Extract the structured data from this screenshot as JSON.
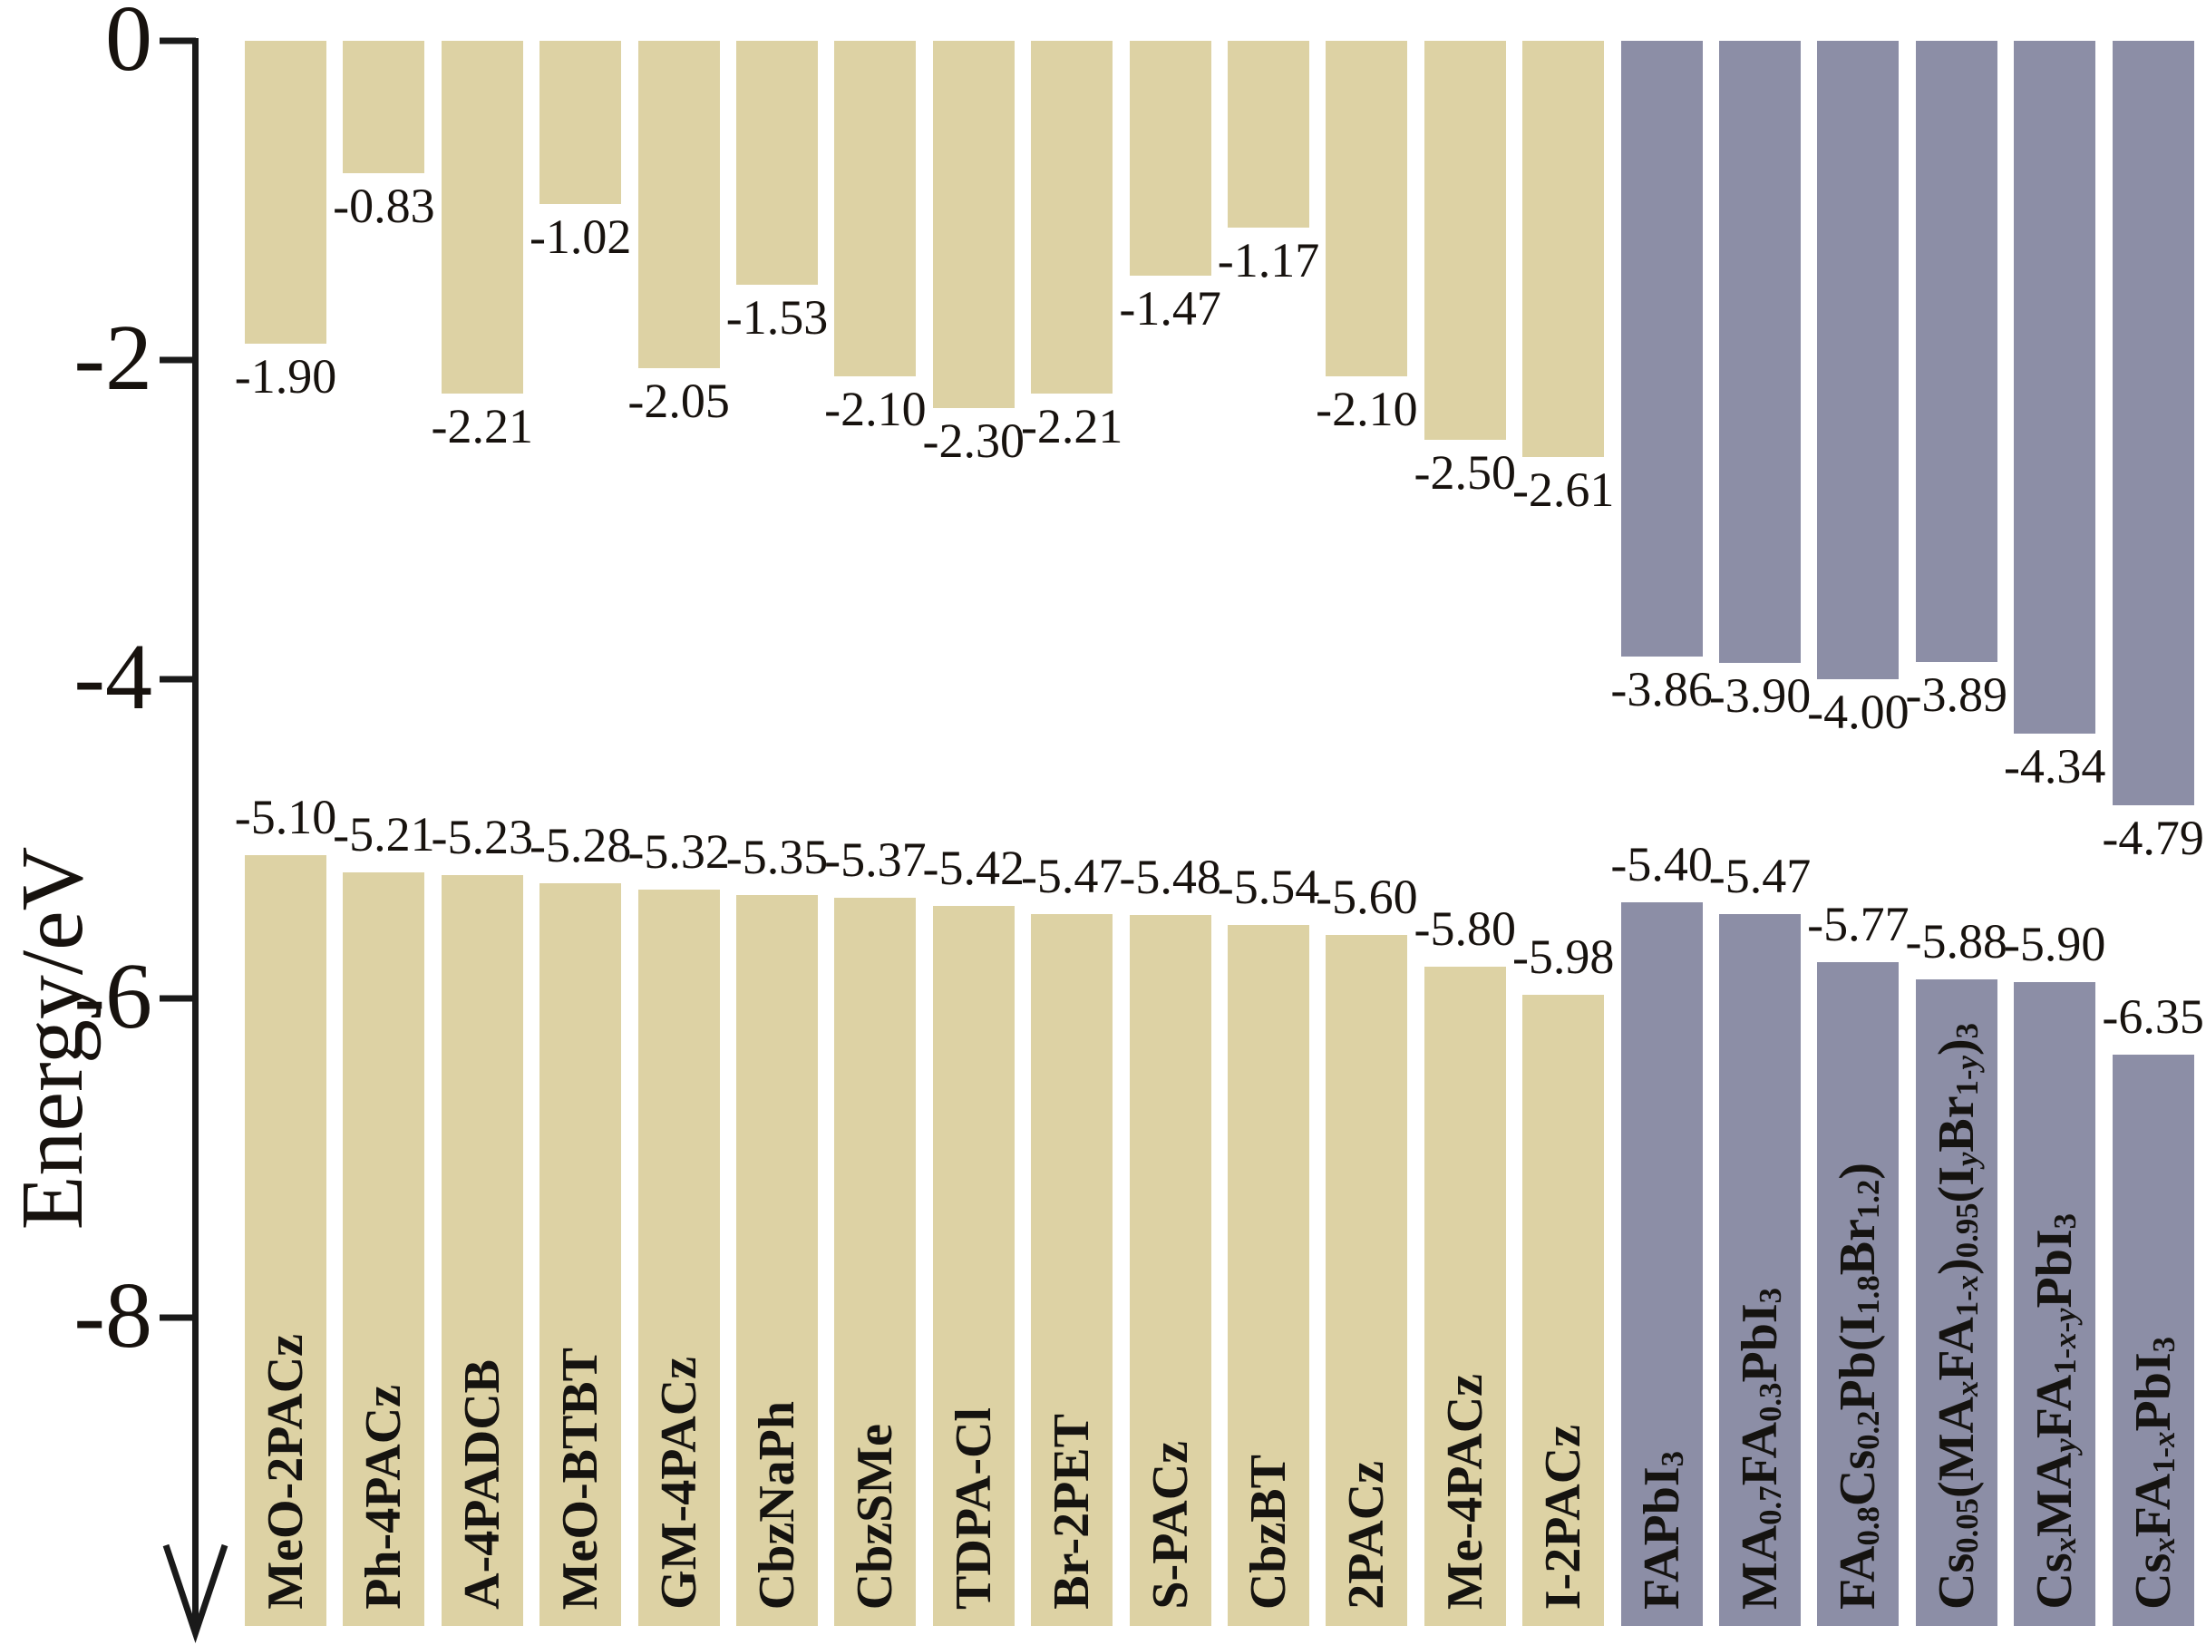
{
  "colors": {
    "figure_background": "#ffffff",
    "axis": "#1a1a1a",
    "label_text": "#17120e",
    "htm_bar": "#ddd2a4",
    "perovskite_bar": "#8c8ea6"
  },
  "chart_data": {
    "type": "bar",
    "subtype": "paired-energy-levels",
    "title": "",
    "xlabel": "",
    "ylabel": "Energy/eV",
    "ylim": [
      -9.9,
      0
    ],
    "grid": false,
    "legend_position": "none",
    "value_label_decimals": 2,
    "yticks": [
      {
        "label": "0",
        "value": 0
      },
      {
        "label": "-2",
        "value": -2
      },
      {
        "label": "-4",
        "value": -4
      },
      {
        "label": "-6",
        "value": -6
      },
      {
        "label": "-8",
        "value": -8
      }
    ],
    "groups": {
      "htm": {
        "color": "#ddd2a4"
      },
      "perovskite": {
        "color": "#8c8ea6"
      }
    },
    "bars": [
      {
        "label": "MeO-2PACz",
        "group": "htm",
        "upper_level": -1.9,
        "lower_level": -5.1
      },
      {
        "label": "Ph-4PACz",
        "group": "htm",
        "upper_level": -0.83,
        "lower_level": -5.21
      },
      {
        "label": "A-4PADCB",
        "group": "htm",
        "upper_level": -2.21,
        "lower_level": -5.23
      },
      {
        "label": "MeO-BTBT",
        "group": "htm",
        "upper_level": -1.02,
        "lower_level": -5.28
      },
      {
        "label": "GM-4PACz",
        "group": "htm",
        "upper_level": -2.05,
        "lower_level": -5.32
      },
      {
        "label": "CbzNaPh",
        "group": "htm",
        "upper_level": -1.53,
        "lower_level": -5.35
      },
      {
        "label": "CbzSMe",
        "group": "htm",
        "upper_level": -2.1,
        "lower_level": -5.37
      },
      {
        "label": "TDPA-Cl",
        "group": "htm",
        "upper_level": -2.3,
        "lower_level": -5.42
      },
      {
        "label": "Br-2PET",
        "group": "htm",
        "upper_level": -2.21,
        "lower_level": -5.47
      },
      {
        "label": "S-PACz",
        "group": "htm",
        "upper_level": -1.47,
        "lower_level": -5.48
      },
      {
        "label": "CbzBT",
        "group": "htm",
        "upper_level": -1.17,
        "lower_level": -5.54
      },
      {
        "label": "2PACz",
        "group": "htm",
        "upper_level": -2.1,
        "lower_level": -5.6
      },
      {
        "label": "Me-4PACz",
        "group": "htm",
        "upper_level": -2.5,
        "lower_level": -5.8
      },
      {
        "label": "I-2PACz",
        "group": "htm",
        "upper_level": -2.61,
        "lower_level": -5.98
      },
      {
        "label": "FAPbI_{3}",
        "group": "perovskite",
        "upper_level": -3.86,
        "lower_level": -5.4
      },
      {
        "label": "MA_{0.7}FA_{0.3}PbI_{3}",
        "group": "perovskite",
        "upper_level": -3.9,
        "lower_level": -5.47
      },
      {
        "label": "FA_{0.8}Cs_{0.2}Pb(I_{1.8}Br_{1.2})",
        "group": "perovskite",
        "upper_level": -4.0,
        "lower_level": -5.77
      },
      {
        "label": "Cs_{0.05}(MA_{x}FA_{1-x})_{0.95}(I_{y}Br_{1-y})_{3}",
        "group": "perovskite",
        "upper_level": -3.89,
        "lower_level": -5.88
      },
      {
        "label": "Cs_{x}MA_{y}FA_{1-x-y}PbI_{3}",
        "group": "perovskite",
        "upper_level": -4.34,
        "lower_level": -5.9
      },
      {
        "label": "Cs_{x}FA_{1-x}PbI_{3}",
        "group": "perovskite",
        "upper_level": -4.79,
        "lower_level": -6.35
      }
    ]
  }
}
